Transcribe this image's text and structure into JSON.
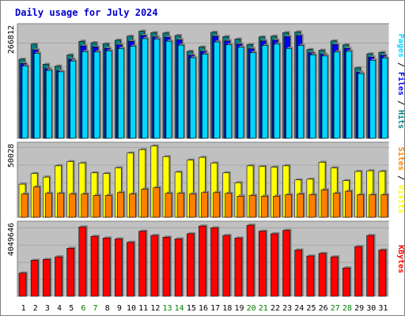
{
  "chart_data": {
    "title": "Daily usage for July 2024",
    "type": "bar",
    "categories": [
      "1",
      "2",
      "3",
      "4",
      "5",
      "6",
      "7",
      "8",
      "9",
      "10",
      "11",
      "12",
      "13",
      "14",
      "15",
      "16",
      "17",
      "18",
      "19",
      "20",
      "21",
      "22",
      "23",
      "24",
      "25",
      "26",
      "27",
      "28",
      "29",
      "30",
      "31"
    ],
    "weekend_days": [
      "6",
      "7",
      "13",
      "14",
      "20",
      "21",
      "27",
      "28"
    ],
    "colors": {
      "title": "#0000cc",
      "background": "#c0c0c0",
      "frame_dark": "#808080",
      "hits": "#008080",
      "files": "#0000ff",
      "pages": "#00d8ff",
      "visits": "#ffff00",
      "sites": "#ff8000",
      "kbytes": "#ff0000",
      "weekend_label": "#008000"
    },
    "panels": [
      {
        "id": "top",
        "ymax": 312000,
        "tick_label": "266812",
        "tick_value": 266812,
        "side_labels": [
          {
            "text": "Pages",
            "color": "#00d8ff"
          },
          {
            "text": " / ",
            "color": "#000000"
          },
          {
            "text": "Files",
            "color": "#0000ff"
          },
          {
            "text": " / ",
            "color": "#000000"
          },
          {
            "text": "Hits",
            "color": "#008080"
          }
        ],
        "series": [
          {
            "name": "Hits",
            "values": [
              222000,
              264000,
              208000,
              203000,
              234000,
              272000,
              268000,
              265000,
              275000,
              286000,
              300000,
              296000,
              295000,
              288000,
              244000,
              256000,
              297000,
              285000,
              278000,
              263000,
              284000,
              286000,
              296000,
              298000,
              249000,
              247000,
              273000,
              262000,
              198000,
              237000,
              241000
            ]
          },
          {
            "name": "Files",
            "values": [
              210000,
              248000,
              196000,
              190000,
              222000,
              259000,
              256000,
              252000,
              262000,
              272000,
              288000,
              284000,
              283000,
              276000,
              233000,
              244000,
              286000,
              273000,
              264000,
              251000,
              273000,
              275000,
              285000,
              288000,
              240000,
              236000,
              263000,
              252000,
              186000,
              228000,
              233000
            ]
          },
          {
            "name": "Pages",
            "values": [
              203000,
              238000,
              191000,
              187000,
              217000,
              243000,
              242000,
              245000,
              252000,
              258000,
              279000,
              278000,
              272000,
              261000,
              226000,
              236000,
              270000,
              262000,
              255000,
              240000,
              260000,
              264000,
              252000,
              260000,
              234000,
              231000,
              242000,
              244000,
              182000,
              219000,
              225000
            ]
          }
        ]
      },
      {
        "id": "middle",
        "ymax": 51500,
        "tick_label": "50028",
        "tick_value": 50028,
        "side_labels": [
          {
            "text": "Sites",
            "color": "#ff8000"
          },
          {
            "text": " / ",
            "color": "#000000"
          },
          {
            "text": "Visits",
            "color": "#ffff00"
          }
        ],
        "series": [
          {
            "name": "Visits",
            "values": [
              24000,
              31500,
              29000,
              37000,
              40000,
              39000,
              32000,
              31500,
              35500,
              46000,
              48500,
              51000,
              43500,
              32500,
              41000,
              43000,
              39000,
              32000,
              25000,
              37000,
              36500,
              36000,
              37000,
              27000,
              27500,
              39500,
              35500,
              26500,
              33000,
              33500,
              33000
            ]
          },
          {
            "name": "Sites",
            "values": [
              17000,
              22000,
              17500,
              17500,
              17000,
              17000,
              16000,
              16000,
              18000,
              17000,
              20500,
              21500,
              17500,
              17500,
              17000,
              18000,
              18000,
              17500,
              15500,
              16000,
              15500,
              15500,
              16500,
              17000,
              16500,
              20000,
              17500,
              19000,
              16500,
              16500,
              16500
            ]
          }
        ]
      },
      {
        "id": "bottom",
        "ymax": 4250000,
        "tick_label": "4049646",
        "tick_value": 4049646,
        "side_labels": [
          {
            "text": "KBytes",
            "color": "#ff0000"
          }
        ],
        "series": [
          {
            "name": "KBytes",
            "values": [
              1400000,
              2150000,
              2200000,
              2350000,
              2850000,
              4100000,
              3550000,
              3450000,
              3400000,
              3200000,
              3850000,
              3600000,
              3500000,
              3400000,
              3700000,
              4150000,
              4050000,
              3600000,
              3450000,
              4200000,
              3850000,
              3700000,
              3900000,
              2750000,
              2400000,
              2550000,
              2350000,
              1700000,
              2950000,
              3600000,
              2750000
            ]
          }
        ]
      }
    ]
  }
}
